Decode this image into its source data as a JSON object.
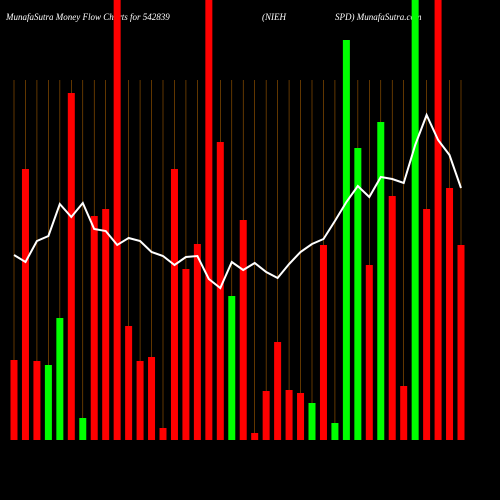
{
  "chart_data": {
    "type": "bar",
    "title": "MunafaSutra  Money Flow  Charts for 542839",
    "title_mid": "(NIEH",
    "title_right": "SPD) MunafaSutra.com",
    "categories": [
      null,
      null,
      null,
      null,
      null,
      null,
      null,
      null,
      null,
      null,
      null,
      null,
      null,
      null,
      null,
      null,
      null,
      null,
      null,
      null,
      null,
      null,
      null,
      null,
      null,
      null,
      null,
      null,
      null,
      null,
      null,
      null,
      null,
      null,
      null,
      null,
      null,
      null,
      null,
      null
    ],
    "values": [
      80,
      271,
      79,
      75,
      122,
      347,
      22,
      224,
      231,
      440,
      114,
      79,
      83,
      12,
      271,
      171,
      196,
      440,
      298,
      144,
      220,
      7,
      49,
      98,
      50,
      47,
      37,
      195,
      17,
      400,
      292,
      175,
      318,
      244,
      54,
      440,
      231,
      440,
      252,
      195
    ],
    "colors": [
      "#ff0000",
      "#ff0000",
      "#ff0000",
      "#00ff00",
      "#00ff00",
      "#ff0000",
      "#00ff00",
      "#ff0000",
      "#ff0000",
      "#ff0000",
      "#ff0000",
      "#ff0000",
      "#ff0000",
      "#ff0000",
      "#ff0000",
      "#ff0000",
      "#ff0000",
      "#ff0000",
      "#ff0000",
      "#00ff00",
      "#ff0000",
      "#ff0000",
      "#ff0000",
      "#ff0000",
      "#ff0000",
      "#ff0000",
      "#00ff00",
      "#ff0000",
      "#00ff00",
      "#00ff00",
      "#00ff00",
      "#ff0000",
      "#00ff00",
      "#ff0000",
      "#ff0000",
      "#00ff00",
      "#ff0000",
      "#ff0000",
      "#ff0000",
      "#ff0000"
    ],
    "line_values": [
      185,
      178,
      199,
      204,
      236,
      223,
      237,
      211,
      209,
      195,
      202,
      199,
      188,
      184,
      175,
      183,
      184,
      161,
      152,
      178,
      170,
      177,
      168,
      162,
      176,
      188,
      196,
      201,
      219,
      238,
      254,
      243,
      263,
      261,
      257,
      295,
      325,
      300,
      285,
      252
    ],
    "line_color": "#ffffff",
    "ylim": [
      0,
      440
    ]
  }
}
